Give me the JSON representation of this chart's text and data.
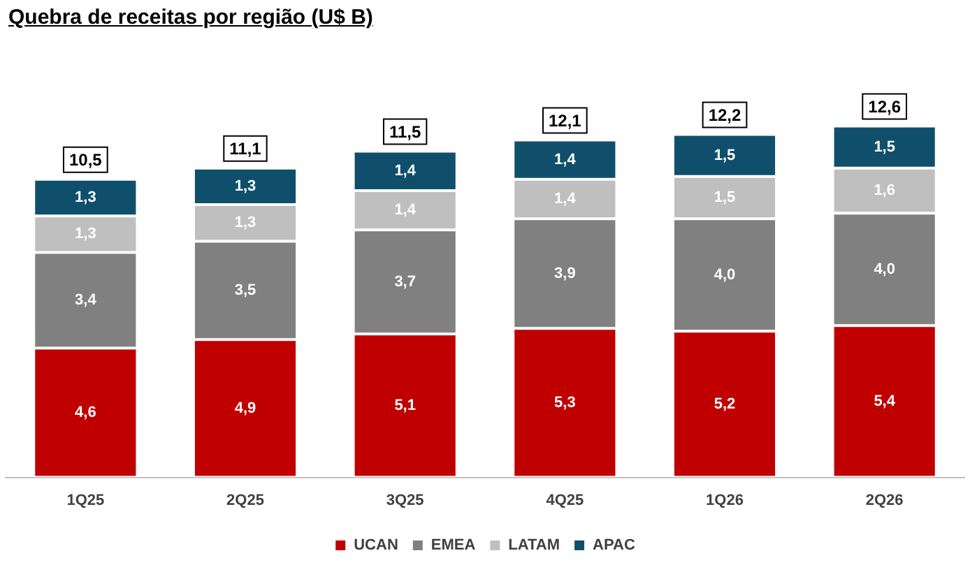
{
  "chart_data": {
    "type": "bar",
    "title": "Quebra de receitas por região (U$ B)",
    "stacked": true,
    "legend": "bottom",
    "grid": false,
    "categories": [
      "1Q25",
      "2Q25",
      "3Q25",
      "4Q25",
      "1Q26",
      "2Q26"
    ],
    "series": [
      {
        "name": "UCAN",
        "color": "#c00000",
        "values": [
          4.6,
          4.9,
          5.1,
          5.3,
          5.2,
          5.4
        ],
        "value_labels": [
          "4,6",
          "4,9",
          "5,1",
          "5,3",
          "5,2",
          "5,4"
        ]
      },
      {
        "name": "EMEA",
        "color": "#808080",
        "values": [
          3.4,
          3.5,
          3.7,
          3.9,
          4.0,
          4.0
        ],
        "value_labels": [
          "3,4",
          "3,5",
          "3,7",
          "3,9",
          "4,0",
          "4,0"
        ]
      },
      {
        "name": "LATAM",
        "color": "#bfbfbf",
        "values": [
          1.3,
          1.3,
          1.4,
          1.4,
          1.5,
          1.6
        ],
        "value_labels": [
          "1,3",
          "1,3",
          "1,4",
          "1,4",
          "1,5",
          "1,6"
        ]
      },
      {
        "name": "APAC",
        "color": "#0f4f6b",
        "values": [
          1.3,
          1.3,
          1.4,
          1.4,
          1.5,
          1.5
        ],
        "value_labels": [
          "1,3",
          "1,3",
          "1,4",
          "1,4",
          "1,5",
          "1,5"
        ]
      }
    ],
    "totals": [
      "10,5",
      "11,1",
      "11,5",
      "12,1",
      "12,2",
      "12,6"
    ]
  }
}
